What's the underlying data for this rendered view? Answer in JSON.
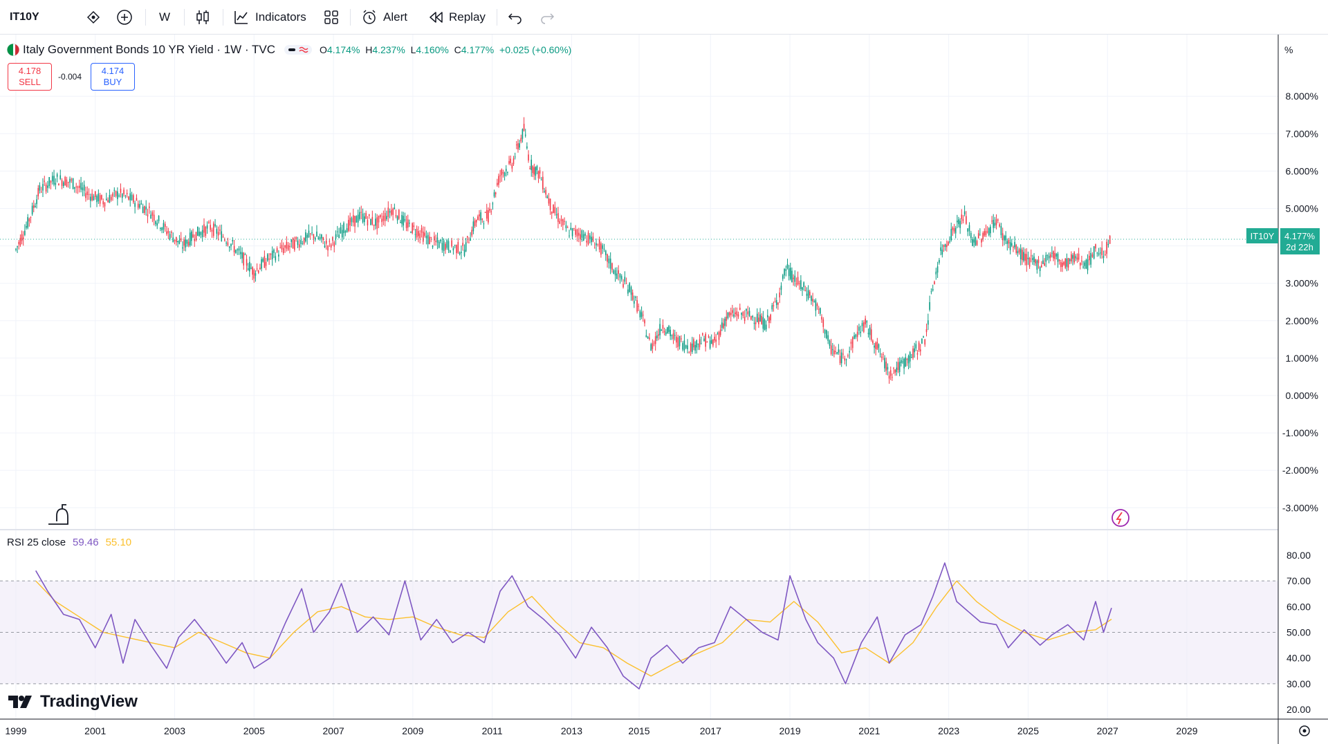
{
  "toolbar": {
    "symbol": "IT10Y",
    "interval": "W",
    "indicators_label": "Indicators",
    "alert_label": "Alert",
    "replay_label": "Replay"
  },
  "legend": {
    "title": "Italy Government Bonds 10 YR Yield · 1W · TVC",
    "o_key": "O",
    "o": "4.174%",
    "h_key": "H",
    "h": "4.237%",
    "l_key": "L",
    "l": "4.160%",
    "c_key": "C",
    "c": "4.177%",
    "change": "+0.025 (+0.60%)"
  },
  "trade": {
    "sell_price": "4.178",
    "sell_label": "SELL",
    "spread": "-0.004",
    "buy_price": "4.174",
    "buy_label": "BUY"
  },
  "price_axis": {
    "unit": "%",
    "badge_symbol": "IT10Y",
    "badge_price": "4.177%",
    "badge_countdown": "2d 22h"
  },
  "rsi": {
    "label": "RSI 25 close",
    "value": "59.46",
    "ma_value": "55.10"
  },
  "branding": {
    "logo_text": "TradingView"
  },
  "colors": {
    "up": "#089981",
    "down": "#f23645",
    "rsi_line": "#7e57c2",
    "rsi_ma": "#fbc02d",
    "rsi_band": "#ede7f6",
    "badge": "#22ab94",
    "grid": "#f0f3fa"
  },
  "chart_data": [
    {
      "type": "candlestick",
      "title": "Italy Government Bonds 10 YR Yield",
      "xlim": [
        1998.6,
        2030.8
      ],
      "ylim": [
        -3.7,
        8.7
      ],
      "y_ticks": [
        "8.000%",
        "7.000%",
        "6.000%",
        "5.000%",
        "3.000%",
        "2.000%",
        "1.000%",
        "0.000%",
        "-1.000%",
        "-2.000%",
        "-3.000%"
      ],
      "y_tick_values": [
        8,
        7,
        6,
        5,
        3,
        2,
        1,
        0,
        -1,
        -2,
        -3
      ],
      "x_ticks": [
        "1999",
        "2001",
        "2003",
        "2005",
        "2007",
        "2009",
        "2011",
        "2013",
        "2015",
        "2017",
        "2019",
        "2021",
        "2023",
        "2025",
        "2027",
        "2029"
      ],
      "x_tick_values": [
        1999.0,
        2001.0,
        2003.0,
        2005.0,
        2007.0,
        2009.0,
        2011.0,
        2013.0,
        2014.7,
        2016.5,
        2018.5,
        2020.5,
        2022.5,
        2024.5,
        2026.5,
        2028.5
      ],
      "last_price": 4.177,
      "series": [
        {
          "x": [
            1999.0,
            1999.3,
            1999.6,
            2000.0,
            2000.4,
            2000.8,
            2001.2,
            2001.6,
            2002.0,
            2002.4,
            2002.8,
            2003.2,
            2003.5,
            2003.9,
            2004.3,
            2004.7,
            2005.0,
            2005.3,
            2005.7,
            2006.1,
            2006.5,
            2006.9,
            2007.3,
            2007.7,
            2008.1,
            2008.5,
            2008.8,
            2009.1,
            2009.5,
            2009.9,
            2010.3,
            2010.6,
            2010.9,
            2011.2,
            2011.5,
            2011.8,
            2011.95,
            2012.2,
            2012.5,
            2012.9,
            2013.3,
            2013.7,
            2014.1,
            2014.5,
            2014.8,
            2015.0,
            2015.3,
            2015.6,
            2016.0,
            2016.3,
            2016.6,
            2016.9,
            2017.2,
            2017.6,
            2017.9,
            2018.2,
            2018.4,
            2018.7,
            2019.0,
            2019.3,
            2019.5,
            2019.8,
            2020.0,
            2020.2,
            2020.4,
            2020.7,
            2021.0,
            2021.3,
            2021.6,
            2021.9,
            2022.1,
            2022.3,
            2022.6,
            2022.9,
            2023.1,
            2023.4,
            2023.7,
            2023.9,
            2024.2,
            2024.5,
            2024.8,
            2025.1,
            2025.4,
            2025.7,
            2026.0,
            2026.2,
            2026.4,
            2026.6
          ],
          "close": [
            3.9,
            4.6,
            5.5,
            5.8,
            5.7,
            5.4,
            5.2,
            5.4,
            5.2,
            4.9,
            4.4,
            4.0,
            4.3,
            4.5,
            4.2,
            3.7,
            3.3,
            3.6,
            3.9,
            4.1,
            4.3,
            4.0,
            4.5,
            4.8,
            4.6,
            5.0,
            4.6,
            4.4,
            4.1,
            4.0,
            3.9,
            4.7,
            4.8,
            5.9,
            6.2,
            7.1,
            6.2,
            5.9,
            5.0,
            4.4,
            4.3,
            4.0,
            3.3,
            2.8,
            2.0,
            1.3,
            1.9,
            1.5,
            1.3,
            1.5,
            1.4,
            2.1,
            2.2,
            2.1,
            1.9,
            2.6,
            3.4,
            3.0,
            2.7,
            2.1,
            1.3,
            1.0,
            1.2,
            1.7,
            1.9,
            1.3,
            0.6,
            0.8,
            1.1,
            1.5,
            2.9,
            3.8,
            4.4,
            4.8,
            4.1,
            4.3,
            4.7,
            4.2,
            3.9,
            3.6,
            3.5,
            3.8,
            3.5,
            3.7,
            3.5,
            3.9,
            3.8,
            4.18
          ]
        }
      ]
    },
    {
      "type": "line",
      "title": "RSI 25 close",
      "ylim": [
        17,
        83
      ],
      "y_ticks": [
        "80.00",
        "70.00",
        "60.00",
        "50.00",
        "40.00",
        "30.00",
        "20.00"
      ],
      "y_tick_values": [
        80,
        70,
        60,
        50,
        40,
        30,
        20
      ],
      "bands": [
        30,
        50,
        70
      ],
      "series": [
        {
          "name": "RSI",
          "x": [
            1999.5,
            1999.8,
            2000.2,
            2000.6,
            2001.0,
            2001.4,
            2001.7,
            2002.0,
            2002.4,
            2002.8,
            2003.1,
            2003.5,
            2003.9,
            2004.3,
            2004.7,
            2005.0,
            2005.4,
            2005.8,
            2006.2,
            2006.5,
            2006.9,
            2007.2,
            2007.6,
            2008.0,
            2008.4,
            2008.8,
            2009.2,
            2009.6,
            2010.0,
            2010.4,
            2010.8,
            2011.2,
            2011.5,
            2011.9,
            2012.3,
            2012.7,
            2013.1,
            2013.5,
            2013.9,
            2014.3,
            2014.7,
            2015.0,
            2015.4,
            2015.8,
            2016.2,
            2016.6,
            2017.0,
            2017.4,
            2017.8,
            2018.2,
            2018.5,
            2018.9,
            2019.2,
            2019.6,
            2019.9,
            2020.3,
            2020.7,
            2021.0,
            2021.4,
            2021.8,
            2022.1,
            2022.4,
            2022.7,
            2023.0,
            2023.3,
            2023.7,
            2024.0,
            2024.4,
            2024.8,
            2025.1,
            2025.5,
            2025.9,
            2026.2,
            2026.4,
            2026.6
          ],
          "values": [
            74,
            66,
            57,
            55,
            44,
            57,
            38,
            55,
            45,
            36,
            48,
            55,
            47,
            38,
            46,
            36,
            40,
            54,
            67,
            50,
            58,
            69,
            50,
            56,
            49,
            70,
            47,
            55,
            46,
            50,
            46,
            66,
            72,
            60,
            55,
            49,
            40,
            52,
            44,
            33,
            28,
            40,
            45,
            38,
            44,
            46,
            60,
            55,
            50,
            47,
            72,
            55,
            46,
            40,
            30,
            46,
            56,
            38,
            49,
            53,
            64,
            77,
            62,
            58,
            54,
            53,
            44,
            51,
            45,
            49,
            53,
            47,
            62,
            50,
            59.46
          ]
        },
        {
          "name": "MA",
          "x": [
            1999.5,
            2000.0,
            2000.6,
            2001.2,
            2001.8,
            2002.4,
            2003.0,
            2003.6,
            2004.2,
            2004.8,
            2005.4,
            2006.0,
            2006.6,
            2007.2,
            2007.8,
            2008.4,
            2009.0,
            2009.6,
            2010.2,
            2010.8,
            2011.4,
            2012.0,
            2012.6,
            2013.2,
            2013.8,
            2014.4,
            2015.0,
            2015.6,
            2016.2,
            2016.8,
            2017.4,
            2018.0,
            2018.6,
            2019.2,
            2019.8,
            2020.4,
            2021.0,
            2021.6,
            2022.2,
            2022.7,
            2023.2,
            2023.8,
            2024.4,
            2025.0,
            2025.6,
            2026.2,
            2026.6
          ],
          "values": [
            70,
            62,
            56,
            50,
            48,
            46,
            44,
            50,
            46,
            42,
            40,
            50,
            58,
            60,
            56,
            55,
            56,
            52,
            49,
            48,
            58,
            64,
            54,
            46,
            44,
            38,
            33,
            38,
            42,
            46,
            55,
            54,
            62,
            54,
            42,
            44,
            38,
            46,
            60,
            70,
            62,
            55,
            50,
            47,
            50,
            51,
            55.1
          ]
        }
      ]
    }
  ]
}
